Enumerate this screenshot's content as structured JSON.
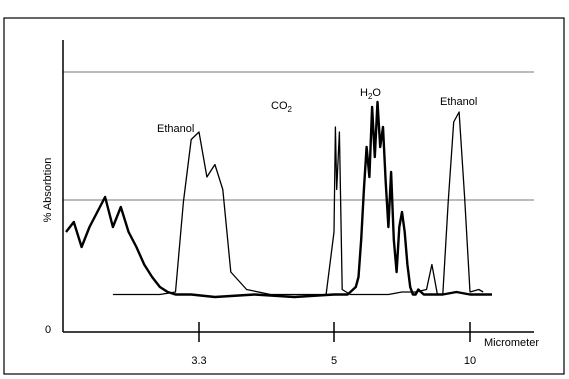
{
  "chart_data": {
    "type": "line",
    "title": "",
    "xlabel": "Micrometer",
    "ylabel": "% Absorbtion",
    "x_ticks": [
      "3.3",
      "5",
      "10"
    ],
    "y_ticks": [
      "0"
    ],
    "grid": "horizontal lines",
    "annotations": [
      {
        "text": "Ethanol"
      },
      {
        "text": "CO",
        "sub": "2"
      },
      {
        "text": "H",
        "sub": "2",
        "suffix": "O"
      },
      {
        "text": "Ethanol"
      }
    ],
    "series": [
      {
        "style": "thin outline",
        "x": [
          2.2,
          2.8,
          3.0,
          3.1,
          3.2,
          3.3,
          3.4,
          3.5,
          3.6,
          3.7,
          3.9,
          4.2,
          4.6,
          4.9,
          5.0,
          5.05,
          5.1,
          5.2,
          5.3,
          5.6,
          6.0,
          6.5,
          7.0,
          7.5,
          8.0,
          8.4,
          8.6,
          8.8,
          9.0,
          9.2,
          9.4,
          9.6,
          9.8,
          10.0,
          10.2,
          10.3
        ],
        "y": [
          3,
          3,
          4,
          40,
          65,
          68,
          50,
          55,
          45,
          12,
          5,
          3,
          3,
          3,
          28,
          70,
          45,
          68,
          5,
          3,
          3,
          3,
          3,
          4,
          4,
          5,
          15,
          3,
          3,
          40,
          72,
          76,
          42,
          4,
          5,
          4
        ]
      },
      {
        "style": "thick noisy",
        "x": [
          1.6,
          1.7,
          1.8,
          1.9,
          2.0,
          2.1,
          2.2,
          2.3,
          2.4,
          2.5,
          2.6,
          2.7,
          2.8,
          2.9,
          3.0,
          3.2,
          3.5,
          4.0,
          4.5,
          5.0,
          5.5,
          5.8,
          5.9,
          6.0,
          6.1,
          6.2,
          6.3,
          6.4,
          6.5,
          6.6,
          6.7,
          6.8,
          6.9,
          7.0,
          7.1,
          7.2,
          7.3,
          7.4,
          7.5,
          7.6,
          7.7,
          7.8,
          7.9,
          8.0,
          8.1,
          8.2,
          8.3,
          8.4,
          8.6,
          8.8,
          9.0,
          9.5,
          10.0,
          10.5
        ],
        "y": [
          28,
          32,
          22,
          30,
          36,
          42,
          30,
          38,
          28,
          22,
          15,
          10,
          6,
          4,
          3,
          3,
          2,
          3,
          2,
          3,
          3,
          6,
          10,
          25,
          45,
          62,
          50,
          78,
          58,
          80,
          62,
          70,
          48,
          30,
          52,
          25,
          12,
          30,
          36,
          28,
          15,
          6,
          3,
          3,
          5,
          4,
          3,
          3,
          3,
          3,
          3,
          4,
          3,
          3
        ]
      }
    ]
  }
}
